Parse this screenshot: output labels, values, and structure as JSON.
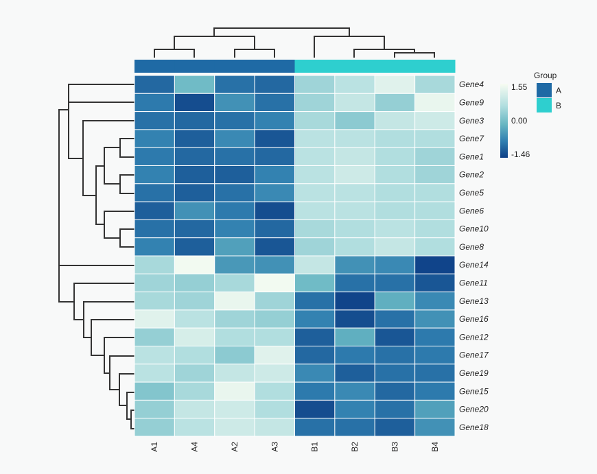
{
  "chart_data": {
    "type": "heatmap",
    "title": "",
    "columns": [
      "A1",
      "A4",
      "A2",
      "A3",
      "B1",
      "B2",
      "B3",
      "B4"
    ],
    "column_groups": [
      "A",
      "A",
      "A",
      "A",
      "B",
      "B",
      "B",
      "B"
    ],
    "rows": [
      "Gene4",
      "Gene9",
      "Gene3",
      "Gene7",
      "Gene1",
      "Gene2",
      "Gene5",
      "Gene6",
      "Gene10",
      "Gene8",
      "Gene14",
      "Gene11",
      "Gene13",
      "Gene16",
      "Gene12",
      "Gene17",
      "Gene19",
      "Gene15",
      "Gene20",
      "Gene18"
    ],
    "values": [
      [
        -1.0,
        0.1,
        -0.9,
        -1.0,
        0.6,
        0.9,
        1.3,
        0.7
      ],
      [
        -0.8,
        -1.3,
        -0.5,
        -0.9,
        0.6,
        1.0,
        0.5,
        1.4
      ],
      [
        -0.9,
        -1.0,
        -0.9,
        -0.7,
        0.7,
        0.4,
        1.0,
        1.1
      ],
      [
        -0.7,
        -1.1,
        -0.6,
        -1.2,
        0.9,
        0.9,
        0.8,
        0.8
      ],
      [
        -0.8,
        -1.0,
        -0.9,
        -1.0,
        0.9,
        1.0,
        0.8,
        0.6
      ],
      [
        -0.7,
        -1.1,
        -1.1,
        -0.7,
        0.9,
        1.1,
        0.8,
        0.6
      ],
      [
        -0.9,
        -1.1,
        -0.9,
        -0.6,
        0.9,
        0.9,
        0.8,
        0.8
      ],
      [
        -1.1,
        -0.5,
        -0.8,
        -1.3,
        0.9,
        0.9,
        0.8,
        0.8
      ],
      [
        -0.9,
        -1.0,
        -0.7,
        -1.0,
        0.7,
        0.8,
        0.9,
        0.8
      ],
      [
        -0.7,
        -1.1,
        -0.3,
        -1.2,
        0.6,
        0.8,
        1.0,
        0.8
      ],
      [
        0.7,
        1.5,
        -0.4,
        -0.5,
        1.0,
        -0.5,
        -0.6,
        -1.4
      ],
      [
        0.6,
        0.5,
        0.7,
        1.5,
        0.1,
        -0.9,
        -0.9,
        -1.2
      ],
      [
        0.7,
        0.6,
        1.4,
        0.6,
        -0.9,
        -1.4,
        -0.1,
        -0.6
      ],
      [
        1.3,
        0.9,
        0.6,
        0.5,
        -0.7,
        -1.3,
        -0.9,
        -0.5
      ],
      [
        0.5,
        1.2,
        0.8,
        0.8,
        -1.1,
        -0.1,
        -1.2,
        -0.8
      ],
      [
        0.9,
        0.8,
        0.4,
        1.3,
        -1.0,
        -0.8,
        -0.9,
        -0.8
      ],
      [
        0.9,
        0.6,
        1.0,
        1.1,
        -0.6,
        -1.1,
        -0.9,
        -0.9
      ],
      [
        0.3,
        0.7,
        1.4,
        0.8,
        -0.8,
        -0.6,
        -1.0,
        -0.8
      ],
      [
        0.5,
        1.0,
        1.1,
        0.8,
        -1.3,
        -0.7,
        -0.9,
        -0.3
      ],
      [
        0.5,
        0.9,
        1.1,
        1.0,
        -0.9,
        -0.9,
        -1.1,
        -0.5
      ]
    ],
    "color_scale": {
      "min": -1.46,
      "mid": 0.0,
      "max": 1.55,
      "min_color": "#0d3f86",
      "mid1_color": "#2f7eb0",
      "mid2_color": "#67b6c2",
      "mid3_color": "#b1dedf",
      "max_color": "#f7fcf2",
      "tick_labels": [
        "1.55",
        "0.00",
        "-1.46"
      ]
    },
    "annotation": {
      "title": "Group",
      "levels": [
        {
          "label": "A",
          "color": "#1f6aa5"
        },
        {
          "label": "B",
          "color": "#2ecfcf"
        }
      ]
    },
    "row_dendrogram": true,
    "column_dendrogram": true
  }
}
